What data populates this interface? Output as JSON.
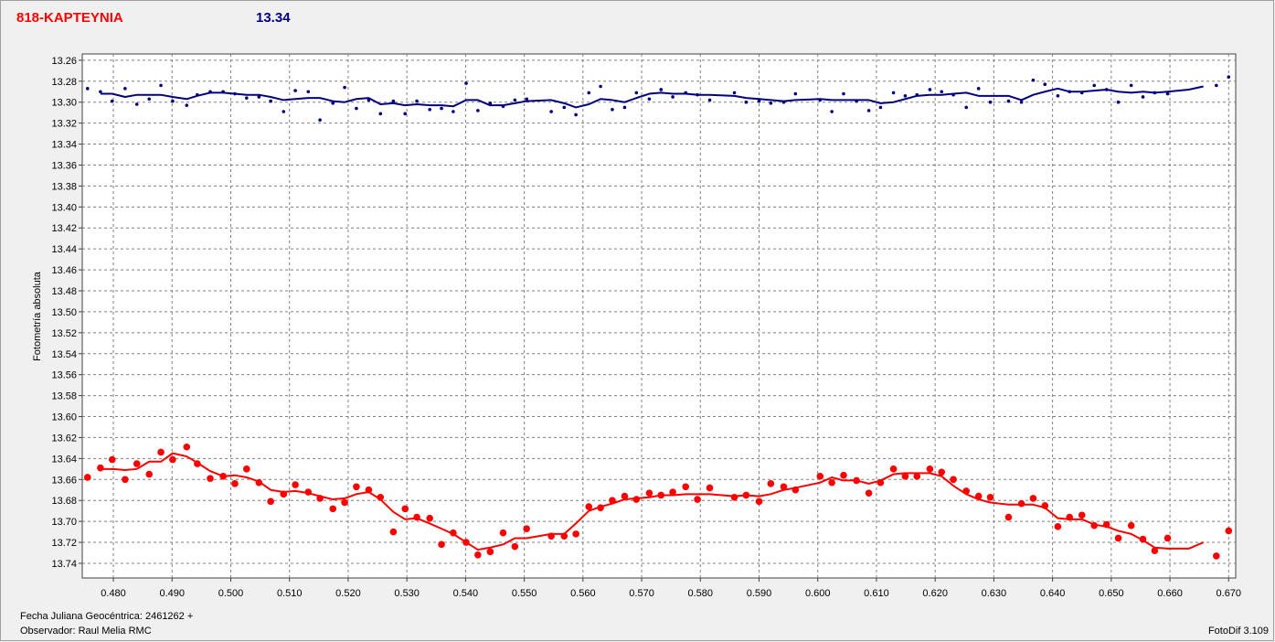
{
  "chart_data": {
    "type": "scatter",
    "title": "818-KAPTEYNIA",
    "subtitle": "13.34",
    "y_label": "Fotometría absoluta",
    "footer_left": [
      "Fecha Juliana Geocéntrica: 2461262 +",
      "Observador: Raul Melia RMC"
    ],
    "footer_right": "FotoDif 3.109",
    "xlim": [
      0.4747,
      0.6712
    ],
    "ylim": [
      13.754,
      13.254
    ],
    "grid": true,
    "xticks": [
      {
        "value": 0.48,
        "label": "0.480"
      },
      {
        "value": 0.49,
        "label": "0.490"
      },
      {
        "value": 0.5,
        "label": "0.500"
      },
      {
        "value": 0.51,
        "label": "0.510"
      },
      {
        "value": 0.52,
        "label": "0.520"
      },
      {
        "value": 0.53,
        "label": "0.530"
      },
      {
        "value": 0.54,
        "label": "0.540"
      },
      {
        "value": 0.55,
        "label": "0.550"
      },
      {
        "value": 0.56,
        "label": "0.560"
      },
      {
        "value": 0.57,
        "label": "0.570"
      },
      {
        "value": 0.58,
        "label": "0.580"
      },
      {
        "value": 0.59,
        "label": "0.590"
      },
      {
        "value": 0.6,
        "label": "0.600"
      },
      {
        "value": 0.61,
        "label": "0.610"
      },
      {
        "value": 0.62,
        "label": "0.620"
      },
      {
        "value": 0.63,
        "label": "0.630"
      },
      {
        "value": 0.64,
        "label": "0.640"
      },
      {
        "value": 0.65,
        "label": "0.650"
      },
      {
        "value": 0.66,
        "label": "0.660"
      },
      {
        "value": 0.67,
        "label": "0.670"
      }
    ],
    "yticks": [
      13.26,
      13.28,
      {
        "value": 13.3,
        "label": "13.30"
      },
      13.32,
      13.34,
      13.36,
      13.38,
      {
        "value": 13.4,
        "label": "13.40"
      },
      13.42,
      13.44,
      13.46,
      13.48,
      {
        "value": 13.5,
        "label": "13.50"
      },
      13.52,
      13.54,
      13.56,
      13.58,
      {
        "value": 13.6,
        "label": "13.60"
      },
      13.62,
      13.64,
      13.66,
      13.68,
      {
        "value": 13.7,
        "label": "13.70"
      },
      13.72,
      13.74
    ],
    "series": [
      {
        "mode": "markers",
        "color": "#000080",
        "size": 1.8,
        "x": [
          0.4756,
          0.4778,
          0.4798,
          0.482,
          0.484,
          0.4861,
          0.4881,
          0.4901,
          0.4925,
          0.4943,
          0.4965,
          0.4987,
          0.5007,
          0.5027,
          0.5048,
          0.5068,
          0.509,
          0.511,
          0.5132,
          0.5152,
          0.5174,
          0.5194,
          0.5214,
          0.5235,
          0.5255,
          0.5277,
          0.5297,
          0.5317,
          0.5339,
          0.5359,
          0.5379,
          0.5401,
          0.5421,
          0.5442,
          0.5464,
          0.5484,
          0.5504,
          0.5546,
          0.5568,
          0.5588,
          0.561,
          0.563,
          0.565,
          0.5671,
          0.5691,
          0.5713,
          0.5733,
          0.5753,
          0.5775,
          0.5795,
          0.5816,
          0.5858,
          0.5878,
          0.59,
          0.592,
          0.5942,
          0.5962,
          0.6004,
          0.6024,
          0.6044,
          0.6066,
          0.6087,
          0.6107,
          0.6129,
          0.6149,
          0.6169,
          0.6191,
          0.6211,
          0.6231,
          0.6253,
          0.6274,
          0.6294,
          0.6325,
          0.6347,
          0.6367,
          0.6387,
          0.6409,
          0.6429,
          0.645,
          0.6471,
          0.6492,
          0.6512,
          0.6534,
          0.6554,
          0.6574,
          0.6596,
          0.6679,
          0.67
        ],
        "values": [
          13.287,
          13.29,
          13.299,
          13.287,
          13.302,
          13.297,
          13.284,
          13.299,
          13.303,
          13.293,
          13.29,
          13.29,
          13.292,
          13.296,
          13.295,
          13.299,
          13.309,
          13.289,
          13.29,
          13.317,
          13.301,
          13.286,
          13.306,
          13.298,
          13.311,
          13.299,
          13.311,
          13.299,
          13.307,
          13.306,
          13.309,
          13.282,
          13.308,
          13.301,
          13.304,
          13.298,
          13.297,
          13.309,
          13.305,
          13.312,
          13.291,
          13.285,
          13.307,
          13.305,
          13.291,
          13.297,
          13.288,
          13.295,
          13.291,
          13.293,
          13.298,
          13.291,
          13.3,
          13.299,
          13.301,
          13.3,
          13.292,
          13.298,
          13.309,
          13.292,
          13.299,
          13.308,
          13.305,
          13.291,
          13.294,
          13.293,
          13.288,
          13.29,
          13.293,
          13.305,
          13.287,
          13.3,
          13.299,
          13.3,
          13.279,
          13.283,
          13.294,
          13.29,
          13.291,
          13.284,
          13.288,
          13.3,
          13.284,
          13.295,
          13.291,
          13.292,
          13.284,
          13.276
        ]
      },
      {
        "mode": "line",
        "color": "#000080",
        "size": 2,
        "x": [
          0.4778,
          0.4798,
          0.482,
          0.484,
          0.4861,
          0.4881,
          0.4901,
          0.4925,
          0.4943,
          0.4965,
          0.4987,
          0.5007,
          0.5027,
          0.5048,
          0.5068,
          0.509,
          0.511,
          0.5132,
          0.5152,
          0.5174,
          0.5194,
          0.5214,
          0.5235,
          0.5255,
          0.5277,
          0.5297,
          0.5317,
          0.5339,
          0.5359,
          0.5379,
          0.5401,
          0.5421,
          0.5442,
          0.5464,
          0.5484,
          0.5504,
          0.5546,
          0.5568,
          0.5588,
          0.561,
          0.563,
          0.565,
          0.5671,
          0.5691,
          0.5713,
          0.5733,
          0.5753,
          0.5775,
          0.5795,
          0.5816,
          0.5858,
          0.5878,
          0.59,
          0.592,
          0.5942,
          0.5962,
          0.6004,
          0.6024,
          0.6044,
          0.6066,
          0.6087,
          0.6107,
          0.6129,
          0.6149,
          0.6169,
          0.6191,
          0.6211,
          0.6231,
          0.6253,
          0.6274,
          0.6294,
          0.6325,
          0.6347,
          0.6367,
          0.6387,
          0.6409,
          0.6429,
          0.645,
          0.6471,
          0.6492,
          0.6512,
          0.6534,
          0.6554,
          0.6574,
          0.6596,
          0.6632,
          0.6657
        ],
        "values": [
          13.292,
          13.292,
          13.295,
          13.293,
          13.293,
          13.293,
          13.295,
          13.297,
          13.294,
          13.291,
          13.291,
          13.292,
          13.293,
          13.293,
          13.295,
          13.298,
          13.297,
          13.296,
          13.296,
          13.299,
          13.3,
          13.297,
          13.296,
          13.302,
          13.301,
          13.303,
          13.302,
          13.303,
          13.303,
          13.304,
          13.298,
          13.298,
          13.303,
          13.303,
          13.301,
          13.299,
          13.298,
          13.301,
          13.305,
          13.302,
          13.297,
          13.298,
          13.3,
          13.296,
          13.292,
          13.291,
          13.292,
          13.292,
          13.293,
          13.293,
          13.294,
          13.296,
          13.297,
          13.298,
          13.299,
          13.298,
          13.297,
          13.298,
          13.298,
          13.298,
          13.298,
          13.301,
          13.3,
          13.297,
          13.294,
          13.293,
          13.293,
          13.292,
          13.291,
          13.294,
          13.294,
          13.294,
          13.298,
          13.293,
          13.29,
          13.287,
          13.29,
          13.29,
          13.289,
          13.288,
          13.29,
          13.291,
          13.29,
          13.291,
          13.29,
          13.288,
          13.285
        ]
      },
      {
        "mode": "markers",
        "color": "#ff0000",
        "size": 3.8,
        "x": [
          0.4756,
          0.4778,
          0.4798,
          0.482,
          0.484,
          0.4861,
          0.4881,
          0.4901,
          0.4925,
          0.4943,
          0.4965,
          0.4987,
          0.5007,
          0.5027,
          0.5048,
          0.5068,
          0.509,
          0.511,
          0.5132,
          0.5152,
          0.5174,
          0.5194,
          0.5214,
          0.5235,
          0.5255,
          0.5277,
          0.5297,
          0.5317,
          0.5339,
          0.5359,
          0.5379,
          0.5401,
          0.5421,
          0.5442,
          0.5464,
          0.5484,
          0.5504,
          0.5546,
          0.5568,
          0.5588,
          0.561,
          0.563,
          0.565,
          0.5671,
          0.5691,
          0.5713,
          0.5733,
          0.5753,
          0.5775,
          0.5795,
          0.5816,
          0.5858,
          0.5878,
          0.59,
          0.592,
          0.5942,
          0.5962,
          0.6004,
          0.6024,
          0.6044,
          0.6066,
          0.6087,
          0.6107,
          0.6129,
          0.6149,
          0.6169,
          0.6191,
          0.6211,
          0.6231,
          0.6253,
          0.6274,
          0.6294,
          0.6325,
          0.6347,
          0.6367,
          0.6387,
          0.6409,
          0.6429,
          0.645,
          0.6471,
          0.6492,
          0.6512,
          0.6534,
          0.6554,
          0.6574,
          0.6596,
          0.6679,
          0.67
        ],
        "values": [
          13.658,
          13.649,
          13.641,
          13.66,
          13.645,
          13.655,
          13.634,
          13.641,
          13.629,
          13.645,
          13.659,
          13.657,
          13.664,
          13.65,
          13.663,
          13.681,
          13.674,
          13.665,
          13.672,
          13.678,
          13.688,
          13.682,
          13.667,
          13.67,
          13.677,
          13.71,
          13.688,
          13.696,
          13.697,
          13.722,
          13.711,
          13.72,
          13.732,
          13.729,
          13.711,
          13.724,
          13.707,
          13.714,
          13.714,
          13.712,
          13.686,
          13.687,
          13.68,
          13.676,
          13.679,
          13.673,
          13.675,
          13.672,
          13.667,
          13.679,
          13.668,
          13.677,
          13.675,
          13.681,
          13.664,
          13.667,
          13.67,
          13.657,
          13.663,
          13.656,
          13.661,
          13.673,
          13.663,
          13.65,
          13.657,
          13.657,
          13.65,
          13.653,
          13.66,
          13.671,
          13.676,
          13.677,
          13.696,
          13.683,
          13.678,
          13.685,
          13.705,
          13.696,
          13.694,
          13.704,
          13.703,
          13.716,
          13.704,
          13.717,
          13.728,
          13.716,
          13.733,
          13.709
        ]
      },
      {
        "mode": "line",
        "color": "#ff0000",
        "size": 2,
        "x": [
          0.4778,
          0.4798,
          0.482,
          0.484,
          0.4861,
          0.4881,
          0.4901,
          0.4925,
          0.4943,
          0.4965,
          0.4987,
          0.5007,
          0.5027,
          0.5048,
          0.5068,
          0.509,
          0.511,
          0.5132,
          0.5152,
          0.5174,
          0.5194,
          0.5214,
          0.5235,
          0.5255,
          0.5277,
          0.5297,
          0.5317,
          0.5339,
          0.5359,
          0.5379,
          0.5401,
          0.5421,
          0.5442,
          0.5464,
          0.5484,
          0.5504,
          0.5546,
          0.5568,
          0.5588,
          0.561,
          0.563,
          0.565,
          0.5671,
          0.5691,
          0.5713,
          0.5733,
          0.5753,
          0.5775,
          0.5795,
          0.5816,
          0.5858,
          0.5878,
          0.59,
          0.592,
          0.5942,
          0.5962,
          0.6004,
          0.6024,
          0.6044,
          0.6066,
          0.6087,
          0.6107,
          0.6129,
          0.6149,
          0.6169,
          0.6191,
          0.6211,
          0.6231,
          0.6253,
          0.6274,
          0.6294,
          0.6325,
          0.6347,
          0.6367,
          0.6387,
          0.6409,
          0.6429,
          0.645,
          0.6471,
          0.6492,
          0.6512,
          0.6534,
          0.6554,
          0.6574,
          0.6596,
          0.6632,
          0.6657
        ],
        "values": [
          13.65,
          13.65,
          13.651,
          13.65,
          13.643,
          13.643,
          13.635,
          13.638,
          13.644,
          13.652,
          13.657,
          13.656,
          13.658,
          13.662,
          13.67,
          13.672,
          13.671,
          13.673,
          13.676,
          13.679,
          13.678,
          13.674,
          13.672,
          13.679,
          13.691,
          13.698,
          13.697,
          13.702,
          13.707,
          13.712,
          13.72,
          13.727,
          13.725,
          13.722,
          13.716,
          13.716,
          13.712,
          13.712,
          13.702,
          13.69,
          13.686,
          13.683,
          13.679,
          13.678,
          13.677,
          13.675,
          13.675,
          13.674,
          13.674,
          13.674,
          13.676,
          13.675,
          13.676,
          13.674,
          13.67,
          13.668,
          13.663,
          13.658,
          13.661,
          13.661,
          13.664,
          13.661,
          13.655,
          13.654,
          13.654,
          13.654,
          13.657,
          13.666,
          13.674,
          13.679,
          13.682,
          13.684,
          13.684,
          13.684,
          13.687,
          13.697,
          13.698,
          13.698,
          13.703,
          13.705,
          13.709,
          13.712,
          13.718,
          13.725,
          13.726,
          13.726,
          13.72
        ]
      }
    ]
  }
}
